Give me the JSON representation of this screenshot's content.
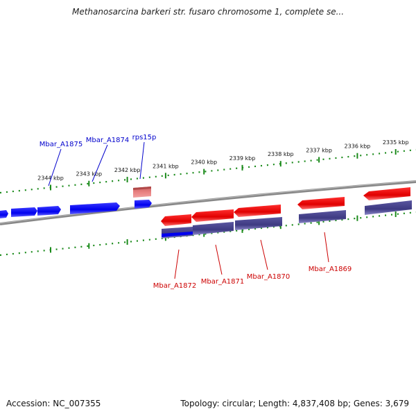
{
  "title": "Methanosarcina barkeri str. fusaro chromosome 1, complete se...",
  "footer": {
    "accession": "Accession: NC_007355",
    "summary": "Topology: circular; Length: 4,837,408 bp; Genes: 3,679"
  },
  "colors": {
    "backbone": "#888888",
    "tick": "#1a8a1a",
    "gene_forward": "#0000ee",
    "gene_reverse": "#ee0000",
    "cds_reverse": "#4a4690",
    "rna_feature": "#e07070",
    "label_forward": "#0000cc",
    "label_reverse": "#cc0000"
  },
  "ruler": {
    "unit": "kbp",
    "ticks": [
      {
        "kbp": 2344,
        "label": "2344 kbp"
      },
      {
        "kbp": 2343,
        "label": "2343 kbp"
      },
      {
        "kbp": 2342,
        "label": "2342 kbp"
      },
      {
        "kbp": 2341,
        "label": "2341 kbp"
      },
      {
        "kbp": 2340,
        "label": "2340 kbp"
      },
      {
        "kbp": 2339,
        "label": "2339 kbp"
      },
      {
        "kbp": 2338,
        "label": "2338 kbp"
      },
      {
        "kbp": 2337,
        "label": "2337 kbp"
      },
      {
        "kbp": 2336,
        "label": "2336 kbp"
      },
      {
        "kbp": 2335,
        "label": "2335 kbp"
      }
    ]
  },
  "gene_labels": {
    "forward": [
      "Mbar_A1875",
      "Mbar_A1874",
      "rps15p"
    ],
    "reverse": [
      "Mbar_A1872",
      "Mbar_A1871",
      "Mbar_A1870",
      "Mbar_A1869"
    ]
  }
}
